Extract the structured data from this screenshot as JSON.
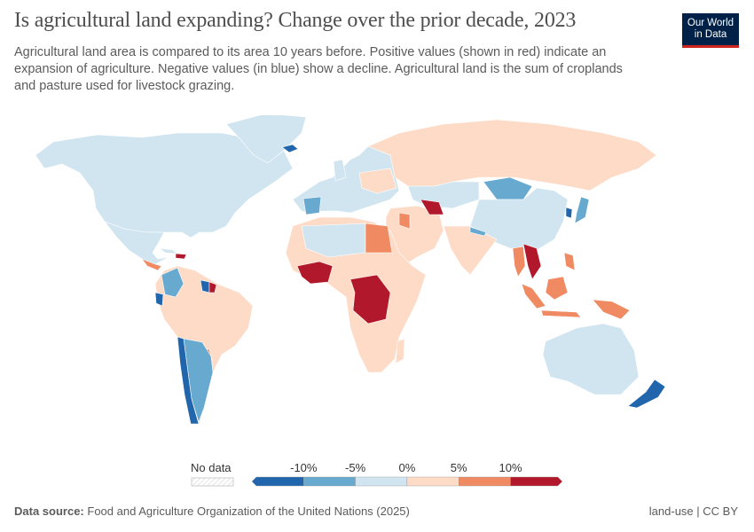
{
  "header": {
    "title": "Is agricultural land expanding? Change over the prior decade, 2023",
    "subtitle": "Agricultural land area is compared to its area 10 years before. Positive values (shown in red) indicate an expansion of agriculture. Negative values (in blue) show a decline. Agricultural land is the sum of croplands and pasture used for livestock grazing.",
    "logo_line1": "Our World",
    "logo_line2": "in Data"
  },
  "legend": {
    "no_data": "No data",
    "ticks": [
      "-10%",
      "-5%",
      "0%",
      "5%",
      "10%"
    ],
    "colors": [
      "#2166ac",
      "#67a9cf",
      "#d1e5f0",
      "#fddbc7",
      "#ef8a62",
      "#b2182b"
    ],
    "bins": [
      "< -10%",
      "-10% to -5%",
      "-5% to 0%",
      "0% to 5%",
      "5% to 10%",
      "> 10%"
    ]
  },
  "footer": {
    "source_label": "Data source:",
    "source": "Food and Agriculture Organization of the United Nations (2025)",
    "license": "land-use | CC BY"
  }
}
